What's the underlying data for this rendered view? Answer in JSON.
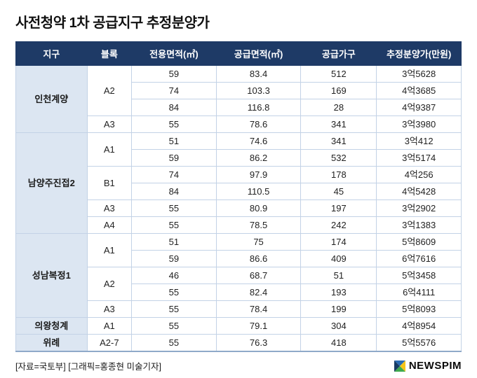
{
  "page": {
    "title": "사전청약 1차 공급지구 추정분양가",
    "footer_source": "[자료=국토부] [그래픽=홍종현 미술기자]",
    "logo_text": "NEWSPIM"
  },
  "colors": {
    "header_bg": "#1e3a66",
    "header_text": "#ffffff",
    "district_bg": "#dce6f2",
    "border": "#c3d2e6",
    "logo_blue": "#2b6bb3",
    "logo_green": "#3faa4f",
    "logo_yellow": "#f5c518",
    "logo_navy": "#173a63"
  },
  "chart_data": {
    "type": "table",
    "title": "사전청약 1차 공급지구 추정분양가",
    "columns": [
      "지구",
      "블록",
      "전용면적(㎡)",
      "공급면적(㎡)",
      "공급가구",
      "추정분양가(만원)"
    ],
    "groups": [
      {
        "district": "인천계양",
        "blocks": [
          {
            "block": "A2",
            "rows": [
              [
                "59",
                "83.4",
                "512",
                "3억5628"
              ],
              [
                "74",
                "103.3",
                "169",
                "4억3685"
              ],
              [
                "84",
                "116.8",
                "28",
                "4억9387"
              ]
            ]
          },
          {
            "block": "A3",
            "rows": [
              [
                "55",
                "78.6",
                "341",
                "3억3980"
              ]
            ]
          }
        ]
      },
      {
        "district": "남양주진접2",
        "blocks": [
          {
            "block": "A1",
            "rows": [
              [
                "51",
                "74.6",
                "341",
                "3억412"
              ],
              [
                "59",
                "86.2",
                "532",
                "3억5174"
              ]
            ]
          },
          {
            "block": "B1",
            "rows": [
              [
                "74",
                "97.9",
                "178",
                "4억256"
              ],
              [
                "84",
                "110.5",
                "45",
                "4억5428"
              ]
            ]
          },
          {
            "block": "A3",
            "rows": [
              [
                "55",
                "80.9",
                "197",
                "3억2902"
              ]
            ]
          },
          {
            "block": "A4",
            "rows": [
              [
                "55",
                "78.5",
                "242",
                "3억1383"
              ]
            ]
          }
        ]
      },
      {
        "district": "성남복정1",
        "blocks": [
          {
            "block": "A1",
            "rows": [
              [
                "51",
                "75",
                "174",
                "5억8609"
              ],
              [
                "59",
                "86.6",
                "409",
                "6억7616"
              ]
            ]
          },
          {
            "block": "A2",
            "rows": [
              [
                "46",
                "68.7",
                "51",
                "5억3458"
              ],
              [
                "55",
                "82.4",
                "193",
                "6억4111"
              ]
            ]
          },
          {
            "block": "A3",
            "rows": [
              [
                "55",
                "78.4",
                "199",
                "5억8093"
              ]
            ]
          }
        ]
      },
      {
        "district": "의왕청계",
        "blocks": [
          {
            "block": "A1",
            "rows": [
              [
                "55",
                "79.1",
                "304",
                "4억8954"
              ]
            ]
          }
        ]
      },
      {
        "district": "위례",
        "blocks": [
          {
            "block": "A2-7",
            "rows": [
              [
                "55",
                "76.3",
                "418",
                "5억5576"
              ]
            ]
          }
        ]
      }
    ]
  }
}
